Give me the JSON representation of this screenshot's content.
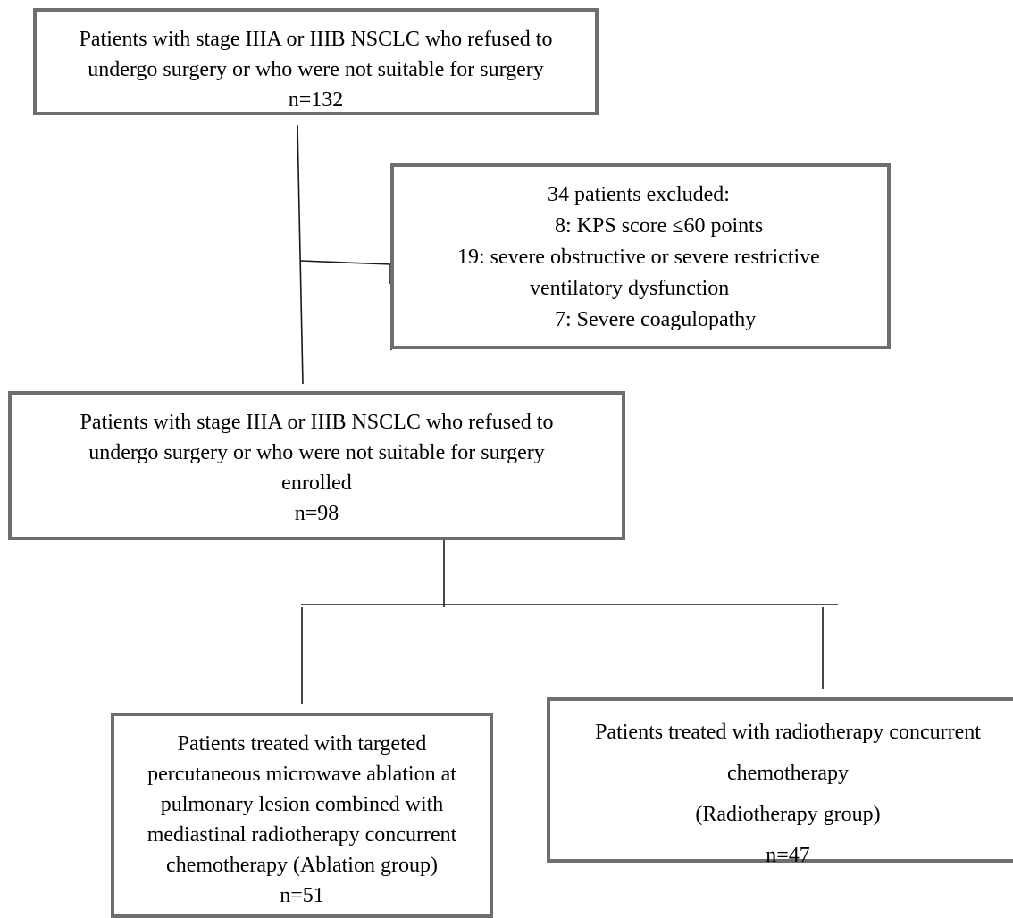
{
  "screening": {
    "lines": [
      "Patients with stage IIIA or IIIB NSCLC who refused to",
      "undergo surgery or who were not suitable for surgery",
      "n=132"
    ]
  },
  "excluded": {
    "lines": [
      "34 patients excluded:",
      "8: KPS score ≤60 points",
      "19: severe obstructive or severe restrictive",
      "ventilatory dysfunction",
      "7: Severe coagulopathy"
    ]
  },
  "enrolled": {
    "lines": [
      "Patients with stage IIIA or IIIB NSCLC who refused to",
      "undergo surgery or who were not suitable for surgery",
      "enrolled",
      "n=98"
    ]
  },
  "ablation_group": {
    "lines": [
      "Patients treated with targeted",
      "percutaneous microwave ablation at",
      "pulmonary lesion combined with",
      "mediastinal radiotherapy concurrent",
      "chemotherapy (Ablation group)",
      "n=51"
    ]
  },
  "radiotherapy_group": {
    "lines": [
      "Patients treated with radiotherapy concurrent",
      "chemotherapy",
      "(Radiotherapy group)",
      "n=47"
    ]
  }
}
